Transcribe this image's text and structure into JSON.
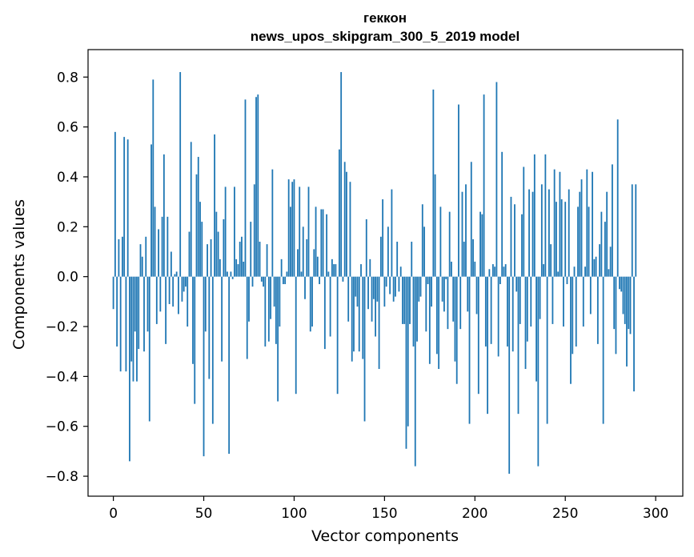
{
  "chart_data": {
    "type": "bar",
    "title_lines": [
      "геккон",
      "news_upos_skipgram_300_5_2019 model"
    ],
    "xlabel": "Vector components",
    "ylabel": "Components values",
    "xlim": [
      -14,
      315
    ],
    "ylim": [
      -0.88,
      0.91
    ],
    "xticks": [
      0,
      50,
      100,
      150,
      200,
      250,
      300
    ],
    "xtick_labels": [
      "0",
      "50",
      "100",
      "150",
      "200",
      "250",
      "300"
    ],
    "yticks": [
      -0.8,
      -0.6,
      -0.4,
      -0.2,
      0.0,
      0.2,
      0.4,
      0.6,
      0.8
    ],
    "ytick_labels": [
      "−0.8",
      "−0.6",
      "−0.4",
      "−0.2",
      "0.0",
      "0.2",
      "0.4",
      "0.6",
      "0.8"
    ],
    "grid": false,
    "bar_color": "#1f77b4",
    "series": [
      {
        "values": [
          -0.13,
          0.58,
          -0.28,
          0.15,
          -0.38,
          0.16,
          0.56,
          -0.38,
          0.55,
          -0.74,
          -0.34,
          -0.42,
          -0.22,
          -0.42,
          -0.29,
          0.13,
          0.08,
          -0.3,
          0.16,
          -0.22,
          -0.58,
          0.53,
          0.79,
          0.28,
          -0.19,
          0.19,
          -0.14,
          0.24,
          0.49,
          -0.27,
          0.24,
          -0.11,
          0.1,
          -0.12,
          0.01,
          0.02,
          -0.15,
          0.82,
          -0.1,
          -0.06,
          -0.04,
          -0.2,
          0.18,
          0.54,
          -0.35,
          -0.51,
          0.41,
          0.48,
          0.3,
          0.22,
          -0.72,
          -0.22,
          0.13,
          -0.41,
          0.15,
          -0.59,
          0.57,
          0.26,
          0.18,
          0.07,
          -0.34,
          0.23,
          0.36,
          0.02,
          -0.71,
          0.02,
          -0.01,
          0.36,
          0.07,
          0.05,
          0.14,
          0.16,
          0.06,
          0.71,
          -0.33,
          -0.18,
          0.22,
          -0.04,
          0.37,
          0.72,
          0.73,
          0.14,
          -0.02,
          -0.04,
          -0.28,
          0.13,
          -0.26,
          -0.17,
          0.43,
          -0.12,
          -0.27,
          -0.5,
          -0.2,
          0.07,
          -0.03,
          -0.03,
          0.02,
          0.39,
          0.28,
          0.38,
          0.39,
          -0.47,
          0.11,
          0.36,
          0.02,
          0.2,
          -0.09,
          0.15,
          0.36,
          -0.22,
          -0.2,
          0.11,
          0.28,
          0.08,
          -0.03,
          0.27,
          0.27,
          -0.29,
          0.25,
          0.02,
          -0.24,
          0.07,
          0.05,
          0.05,
          -0.47,
          0.51,
          0.82,
          -0.02,
          0.46,
          0.42,
          -0.18,
          0.38,
          -0.34,
          -0.3,
          -0.08,
          -0.12,
          -0.3,
          0.05,
          -0.33,
          -0.58,
          0.23,
          -0.13,
          0.07,
          -0.18,
          -0.09,
          -0.24,
          -0.1,
          -0.37,
          0.16,
          0.31,
          -0.12,
          -0.04,
          0.2,
          -0.07,
          0.35,
          -0.1,
          -0.08,
          0.14,
          -0.06,
          0.04,
          -0.19,
          -0.19,
          -0.69,
          -0.6,
          -0.19,
          0.14,
          -0.28,
          -0.76,
          -0.26,
          -0.1,
          -0.08,
          0.29,
          0.2,
          -0.22,
          -0.03,
          -0.35,
          -0.12,
          0.75,
          0.41,
          -0.31,
          -0.37,
          0.28,
          -0.1,
          -0.14,
          -0.01,
          -0.21,
          0.26,
          0.06,
          -0.18,
          -0.34,
          -0.43,
          0.69,
          -0.21,
          0.34,
          0.14,
          0.37,
          -0.14,
          -0.59,
          0.46,
          0.15,
          0.06,
          -0.15,
          -0.47,
          0.26,
          0.25,
          0.73,
          -0.28,
          -0.55,
          0.03,
          -0.27,
          0.05,
          0.04,
          0.78,
          -0.32,
          -0.03,
          0.5,
          0.04,
          0.05,
          -0.28,
          -0.79,
          0.32,
          -0.3,
          0.29,
          -0.06,
          -0.55,
          -0.19,
          0.25,
          0.44,
          -0.37,
          -0.26,
          0.35,
          -0.2,
          0.34,
          0.49,
          -0.42,
          -0.76,
          -0.17,
          0.37,
          0.05,
          0.49,
          -0.59,
          0.35,
          0.13,
          -0.19,
          0.43,
          0.3,
          0.02,
          0.42,
          0.31,
          -0.2,
          0.3,
          -0.03,
          0.35,
          -0.43,
          -0.31,
          0.04,
          -0.28,
          0.28,
          0.34,
          0.39,
          -0.2,
          0.04,
          0.43,
          0.28,
          -0.15,
          0.42,
          0.07,
          0.08,
          -0.27,
          0.13,
          0.26,
          -0.59,
          0.22,
          0.34,
          0.03,
          0.12,
          0.45,
          -0.21,
          -0.31,
          0.63,
          -0.05,
          -0.06,
          -0.15,
          -0.19,
          -0.36,
          -0.21,
          -0.23,
          0.37,
          -0.46,
          0.37
        ]
      }
    ]
  }
}
